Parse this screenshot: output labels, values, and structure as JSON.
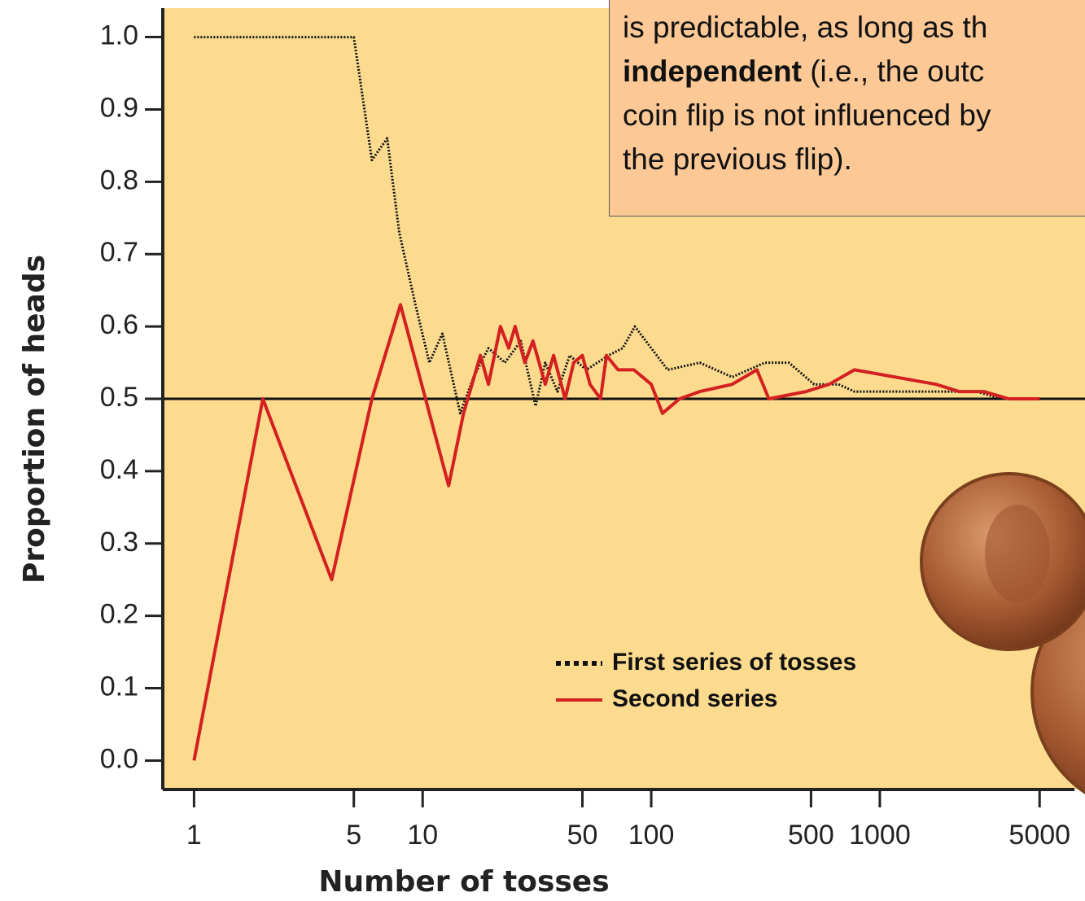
{
  "chart_data": {
    "type": "line",
    "x_label": "Number of tosses",
    "y_label": "Proportion of heads",
    "log_x": true,
    "xlim": [
      0.73,
      7100
    ],
    "xticks": [
      1,
      5,
      10,
      50,
      100,
      500,
      1000,
      5000
    ],
    "ylim": [
      -0.04,
      1.04
    ],
    "yticks": [
      {
        "value": 0,
        "label": "0.0"
      },
      0.1,
      0.2,
      0.3,
      0.4,
      0.5,
      0.6,
      0.7,
      0.8,
      0.9,
      {
        "value": 1,
        "label": "1.0"
      }
    ],
    "reference_line": 0.5,
    "background": "#fcdb8f",
    "series": [
      {
        "name": "First series of tosses",
        "color": "#111111",
        "style": "dotted",
        "x": [
          1,
          5,
          6,
          7,
          7.9,
          9.3,
          10.7,
          12.2,
          14.6,
          16.7,
          19.4,
          22.9,
          26.9,
          31.2,
          34.4,
          38.9,
          44,
          52,
          65,
          75,
          84.8,
          100,
          118,
          163,
          226,
          314,
          400,
          516,
          660,
          775,
          1170,
          1760,
          2660,
          3400,
          4300
        ],
        "values": [
          1.0,
          1.0,
          0.83,
          0.86,
          0.73,
          0.63,
          0.55,
          0.59,
          0.48,
          0.53,
          0.57,
          0.55,
          0.58,
          0.49,
          0.55,
          0.51,
          0.56,
          0.54,
          0.56,
          0.57,
          0.6,
          0.57,
          0.54,
          0.55,
          0.53,
          0.55,
          0.55,
          0.52,
          0.52,
          0.51,
          0.51,
          0.51,
          0.51,
          0.5,
          0.5
        ]
      },
      {
        "name": "Second series",
        "color": "#d42020",
        "style": "solid",
        "x": [
          1,
          2,
          4,
          6,
          8,
          13,
          15.1,
          17.9,
          19.4,
          21.9,
          23.8,
          25.4,
          28,
          30.4,
          34.4,
          37.4,
          42,
          45.8,
          50,
          54,
          60,
          63.7,
          71.6,
          84,
          100,
          112,
          133,
          163,
          226,
          290,
          327,
          475,
          600,
          775,
          1170,
          1760,
          2230,
          2850,
          3660,
          5000
        ],
        "values": [
          0.0,
          0.5,
          0.25,
          0.5,
          0.63,
          0.38,
          0.48,
          0.56,
          0.52,
          0.6,
          0.57,
          0.6,
          0.55,
          0.58,
          0.52,
          0.56,
          0.5,
          0.55,
          0.56,
          0.52,
          0.5,
          0.56,
          0.54,
          0.54,
          0.52,
          0.48,
          0.5,
          0.51,
          0.52,
          0.54,
          0.5,
          0.51,
          0.52,
          0.54,
          0.53,
          0.52,
          0.51,
          0.51,
          0.5,
          0.5
        ]
      }
    ]
  },
  "note": {
    "line_1": "is predictable, as long as th",
    "bold": "independent",
    "line_2_rest": " (i.e., the outc",
    "line_3": "coin flip is not influenced by",
    "line_4": "the previous flip)."
  }
}
